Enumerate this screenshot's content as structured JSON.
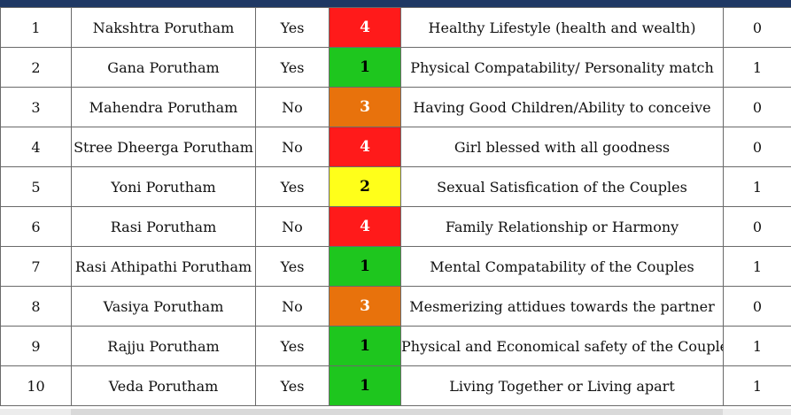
{
  "colors": {
    "header_bar": "#1f3864",
    "score_4": "#ff1a1a",
    "score_3": "#e8720c",
    "score_2": "#ffff1a",
    "score_1": "#1ec61e",
    "score_text_light": "#ffffff",
    "score_text_dark": "#000000"
  },
  "rows": [
    {
      "no": "1",
      "porutham": "Nakshtra Porutham",
      "match": "Yes",
      "score": "4",
      "level": "score_4",
      "meaning": "Healthy Lifestyle (health and wealth)",
      "points": "0"
    },
    {
      "no": "2",
      "porutham": "Gana Porutham",
      "match": "Yes",
      "score": "1",
      "level": "score_1",
      "meaning": "Physical Compatability/ Personality match",
      "points": "1"
    },
    {
      "no": "3",
      "porutham": "Mahendra Porutham",
      "match": "No",
      "score": "3",
      "level": "score_3",
      "meaning": "Having Good Children/Ability to conceive",
      "points": "0"
    },
    {
      "no": "4",
      "porutham": "Stree Dheerga Porutham",
      "match": "No",
      "score": "4",
      "level": "score_4",
      "meaning": "Girl blessed with all goodness",
      "points": "0"
    },
    {
      "no": "5",
      "porutham": "Yoni Porutham",
      "match": "Yes",
      "score": "2",
      "level": "score_2",
      "meaning": "Sexual Satisfication of the Couples",
      "points": "1"
    },
    {
      "no": "6",
      "porutham": "Rasi Porutham",
      "match": "No",
      "score": "4",
      "level": "score_4",
      "meaning": "Family Relationship or Harmony",
      "points": "0"
    },
    {
      "no": "7",
      "porutham": "Rasi Athipathi Porutham",
      "match": "Yes",
      "score": "1",
      "level": "score_1",
      "meaning": "Mental Compatability of the Couples",
      "points": "1"
    },
    {
      "no": "8",
      "porutham": "Vasiya Porutham",
      "match": "No",
      "score": "3",
      "level": "score_3",
      "meaning": "Mesmerizing attidues towards the partner",
      "points": "0"
    },
    {
      "no": "9",
      "porutham": "Rajju Porutham",
      "match": "Yes",
      "score": "1",
      "level": "score_1",
      "meaning": "Physical and Economical safety of the Couples",
      "points": "1"
    },
    {
      "no": "10",
      "porutham": "Veda Porutham",
      "match": "Yes",
      "score": "1",
      "level": "score_1",
      "meaning": "Living Together or Living apart",
      "points": "1"
    }
  ]
}
